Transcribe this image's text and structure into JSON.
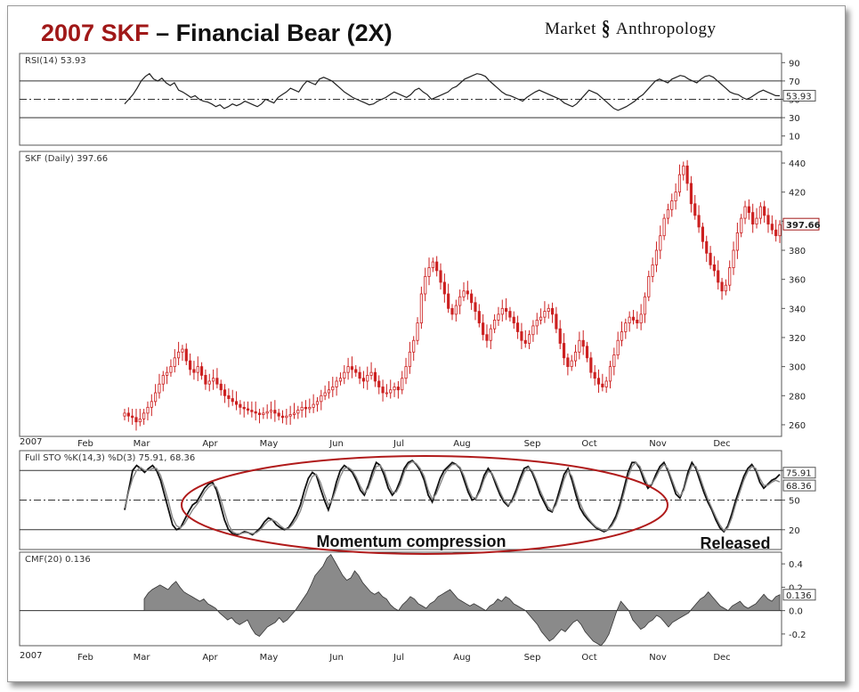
{
  "title": {
    "ticker_year": "2007 SKF",
    "rest": " – Financial Bear (2X)"
  },
  "brand": {
    "left": "Market",
    "right": "Anthropology"
  },
  "colors": {
    "up": "#cc2020",
    "down": "#cc2020",
    "line": "#222222",
    "cmf_fill": "#8a8a8a",
    "ellipse": "#b01a1a"
  },
  "chart_data": [
    {
      "type": "line",
      "title": "RSI(14) 53.93",
      "ylim": [
        0,
        100
      ],
      "yticks": [
        10,
        30,
        50,
        70,
        90
      ],
      "reference_lines": [
        30,
        50,
        70
      ],
      "last_value_label": "53.93",
      "months": [
        "Feb",
        "Mar",
        "Apr",
        "May",
        "Jun",
        "Jul",
        "Aug",
        "Sep",
        "Oct",
        "Nov",
        "Dec"
      ],
      "series": [
        {
          "values": [
            45,
            50,
            55,
            62,
            70,
            75,
            78,
            72,
            70,
            73,
            68,
            65,
            68,
            60,
            58,
            55,
            52,
            54,
            50,
            48,
            47,
            45,
            42,
            44,
            40,
            42,
            45,
            43,
            45,
            48,
            46,
            44,
            42,
            45,
            50,
            48,
            46,
            52,
            55,
            58,
            62,
            60,
            58,
            65,
            70,
            68,
            66,
            72,
            74,
            72,
            70,
            66,
            62,
            58,
            55,
            52,
            50,
            48,
            46,
            44,
            45,
            48,
            50,
            52,
            55,
            58,
            56,
            54,
            52,
            55,
            60,
            62,
            58,
            55,
            50,
            52,
            54,
            56,
            58,
            62,
            64,
            68,
            72,
            74,
            76,
            78,
            77,
            75,
            70,
            66,
            62,
            58,
            55,
            54,
            52,
            50,
            48,
            52,
            55,
            58,
            60,
            58,
            56,
            54,
            52,
            50,
            46,
            44,
            42,
            45,
            50,
            55,
            60,
            58,
            56,
            52,
            48,
            44,
            40,
            38,
            40,
            42,
            45,
            48,
            52,
            55,
            60,
            65,
            70,
            72,
            70,
            68,
            72,
            74,
            76,
            75,
            72,
            70,
            68,
            72,
            75,
            76,
            74,
            70,
            66,
            62,
            58,
            56,
            55,
            52,
            50,
            52,
            55,
            58,
            60,
            58,
            56,
            54,
            53.93
          ]
        }
      ]
    },
    {
      "type": "candlestick",
      "title": "SKF (Daily) 397.66",
      "ylim": [
        252,
        448
      ],
      "yticks": [
        260,
        280,
        300,
        320,
        340,
        360,
        380,
        400,
        420,
        440
      ],
      "last_value_label": "397.66",
      "months": [
        "Feb",
        "Mar",
        "Apr",
        "May",
        "Jun",
        "Jul",
        "Aug",
        "Sep",
        "Oct",
        "Nov",
        "Dec"
      ],
      "x_start_label": "2007",
      "series": [
        {
          "name": "close",
          "values": [
            268,
            266,
            265,
            262,
            264,
            268,
            272,
            276,
            282,
            288,
            294,
            296,
            300,
            306,
            310,
            312,
            304,
            298,
            296,
            300,
            294,
            288,
            290,
            292,
            288,
            284,
            280,
            278,
            276,
            274,
            272,
            271,
            270,
            269,
            268,
            267,
            268,
            269,
            270,
            268,
            266,
            265,
            266,
            267,
            268,
            270,
            272,
            271,
            272,
            274,
            276,
            280,
            282,
            284,
            286,
            290,
            292,
            296,
            300,
            298,
            296,
            292,
            290,
            294,
            296,
            290,
            286,
            282,
            282,
            284,
            286,
            284,
            292,
            300,
            310,
            318,
            330,
            350,
            362,
            368,
            372,
            366,
            358,
            350,
            340,
            336,
            342,
            348,
            352,
            350,
            344,
            338,
            330,
            322,
            318,
            326,
            332,
            336,
            340,
            338,
            334,
            330,
            324,
            318,
            316,
            322,
            328,
            332,
            334,
            338,
            340,
            336,
            326,
            316,
            306,
            300,
            304,
            310,
            318,
            314,
            306,
            296,
            292,
            288,
            286,
            290,
            300,
            308,
            318,
            324,
            330,
            334,
            332,
            330,
            336,
            348,
            362,
            370,
            380,
            390,
            402,
            408,
            414,
            420,
            432,
            438,
            426,
            412,
            404,
            396,
            386,
            378,
            370,
            366,
            358,
            352,
            356,
            368,
            380,
            392,
            402,
            410,
            406,
            398,
            402,
            410,
            404,
            398,
            394,
            390,
            397.66
          ]
        }
      ]
    },
    {
      "type": "line",
      "title": "Full STO %K(14,3) %D(3) 75.91, 68.36",
      "ylim": [
        0,
        100
      ],
      "yticks": [
        20,
        50,
        80
      ],
      "reference_lines": [
        20,
        50,
        80
      ],
      "last_value_labels": [
        "75.91",
        "68.36"
      ],
      "series": [
        {
          "name": "%K",
          "values": [
            40,
            60,
            80,
            85,
            82,
            78,
            82,
            85,
            80,
            70,
            55,
            40,
            25,
            20,
            22,
            30,
            38,
            45,
            48,
            55,
            62,
            66,
            68,
            60,
            45,
            30,
            20,
            16,
            15,
            16,
            18,
            17,
            15,
            18,
            22,
            28,
            32,
            30,
            25,
            22,
            20,
            22,
            28,
            35,
            45,
            60,
            72,
            78,
            75,
            62,
            50,
            40,
            52,
            68,
            80,
            85,
            82,
            78,
            70,
            60,
            55,
            65,
            78,
            88,
            85,
            75,
            62,
            55,
            60,
            70,
            82,
            88,
            90,
            86,
            80,
            70,
            55,
            48,
            60,
            72,
            80,
            84,
            88,
            86,
            82,
            70,
            58,
            50,
            52,
            62,
            75,
            82,
            76,
            65,
            55,
            48,
            44,
            50,
            60,
            72,
            82,
            84,
            78,
            68,
            56,
            48,
            40,
            38,
            48,
            62,
            76,
            82,
            70,
            55,
            42,
            35,
            30,
            26,
            22,
            20,
            18,
            20,
            26,
            34,
            46,
            62,
            78,
            88,
            88,
            82,
            70,
            62,
            66,
            76,
            84,
            88,
            80,
            68,
            56,
            52,
            62,
            78,
            88,
            82,
            70,
            58,
            48,
            40,
            30,
            22,
            18,
            24,
            36,
            50,
            62,
            74,
            82,
            86,
            80,
            68,
            62,
            66,
            70,
            72,
            75.91
          ]
        },
        {
          "name": "%D",
          "values": [
            42,
            58,
            72,
            80,
            83,
            80,
            80,
            82,
            82,
            75,
            62,
            48,
            32,
            24,
            22,
            26,
            33,
            40,
            45,
            51,
            58,
            63,
            66,
            63,
            52,
            38,
            25,
            18,
            16,
            16,
            17,
            17,
            16,
            17,
            20,
            25,
            29,
            30,
            28,
            24,
            21,
            21,
            25,
            31,
            39,
            52,
            65,
            74,
            76,
            68,
            56,
            45,
            50,
            62,
            74,
            82,
            83,
            80,
            73,
            64,
            57,
            62,
            73,
            84,
            85,
            79,
            67,
            58,
            58,
            66,
            78,
            86,
            89,
            87,
            82,
            74,
            60,
            51,
            56,
            66,
            76,
            82,
            86,
            86,
            83,
            74,
            62,
            53,
            52,
            59,
            71,
            79,
            77,
            68,
            58,
            50,
            45,
            48,
            57,
            68,
            78,
            83,
            80,
            71,
            60,
            51,
            43,
            39,
            45,
            57,
            71,
            80,
            74,
            60,
            47,
            38,
            32,
            27,
            23,
            21,
            19,
            20,
            24,
            31,
            42,
            57,
            73,
            84,
            88,
            84,
            74,
            65,
            66,
            73,
            81,
            86,
            82,
            71,
            60,
            54,
            60,
            74,
            85,
            84,
            74,
            62,
            51,
            42,
            33,
            25,
            19,
            22,
            32,
            46,
            58,
            70,
            79,
            84,
            82,
            72,
            65,
            65,
            68,
            70,
            68.36
          ]
        }
      ],
      "annotations": [
        "Momentum compression",
        "Released"
      ]
    },
    {
      "type": "area",
      "title": "CMF(20) 0.136",
      "ylim": [
        -0.3,
        0.5
      ],
      "yticks": [
        -0.2,
        0.0,
        0.2,
        0.4
      ],
      "reference_lines": [
        0.0
      ],
      "last_value_label": "0.136",
      "months": [
        "Feb",
        "Mar",
        "Apr",
        "May",
        "Jun",
        "Jul",
        "Aug",
        "Sep",
        "Oct",
        "Nov",
        "Dec"
      ],
      "x_start_label": "2007",
      "series": [
        {
          "values": [
            0.1,
            0.15,
            0.18,
            0.2,
            0.22,
            0.2,
            0.18,
            0.22,
            0.25,
            0.2,
            0.16,
            0.14,
            0.12,
            0.1,
            0.08,
            0.1,
            0.06,
            0.04,
            0.02,
            -0.02,
            -0.05,
            -0.08,
            -0.06,
            -0.1,
            -0.12,
            -0.1,
            -0.08,
            -0.15,
            -0.2,
            -0.22,
            -0.18,
            -0.14,
            -0.12,
            -0.1,
            -0.06,
            -0.1,
            -0.08,
            -0.04,
            0.0,
            0.05,
            0.1,
            0.15,
            0.22,
            0.3,
            0.34,
            0.38,
            0.45,
            0.48,
            0.42,
            0.36,
            0.3,
            0.26,
            0.28,
            0.34,
            0.3,
            0.24,
            0.2,
            0.16,
            0.14,
            0.16,
            0.12,
            0.1,
            0.05,
            0.02,
            0.0,
            0.05,
            0.08,
            0.12,
            0.1,
            0.06,
            0.04,
            0.02,
            0.06,
            0.08,
            0.12,
            0.14,
            0.16,
            0.18,
            0.14,
            0.1,
            0.08,
            0.06,
            0.04,
            0.06,
            0.04,
            0.02,
            0.0,
            0.04,
            0.06,
            0.1,
            0.08,
            0.12,
            0.1,
            0.06,
            0.04,
            0.02,
            0.0,
            -0.04,
            -0.08,
            -0.12,
            -0.18,
            -0.22,
            -0.26,
            -0.24,
            -0.2,
            -0.16,
            -0.18,
            -0.14,
            -0.1,
            -0.08,
            -0.12,
            -0.18,
            -0.22,
            -0.26,
            -0.28,
            -0.3,
            -0.26,
            -0.2,
            -0.1,
            0.0,
            0.08,
            0.04,
            0.0,
            -0.08,
            -0.12,
            -0.16,
            -0.14,
            -0.1,
            -0.08,
            -0.04,
            -0.06,
            -0.1,
            -0.14,
            -0.1,
            -0.08,
            -0.06,
            -0.04,
            -0.02,
            0.02,
            0.06,
            0.1,
            0.12,
            0.16,
            0.12,
            0.08,
            0.04,
            0.02,
            0.0,
            0.04,
            0.06,
            0.08,
            0.04,
            0.02,
            0.04,
            0.06,
            0.1,
            0.14,
            0.1,
            0.08,
            0.12,
            0.136
          ]
        }
      ]
    }
  ]
}
